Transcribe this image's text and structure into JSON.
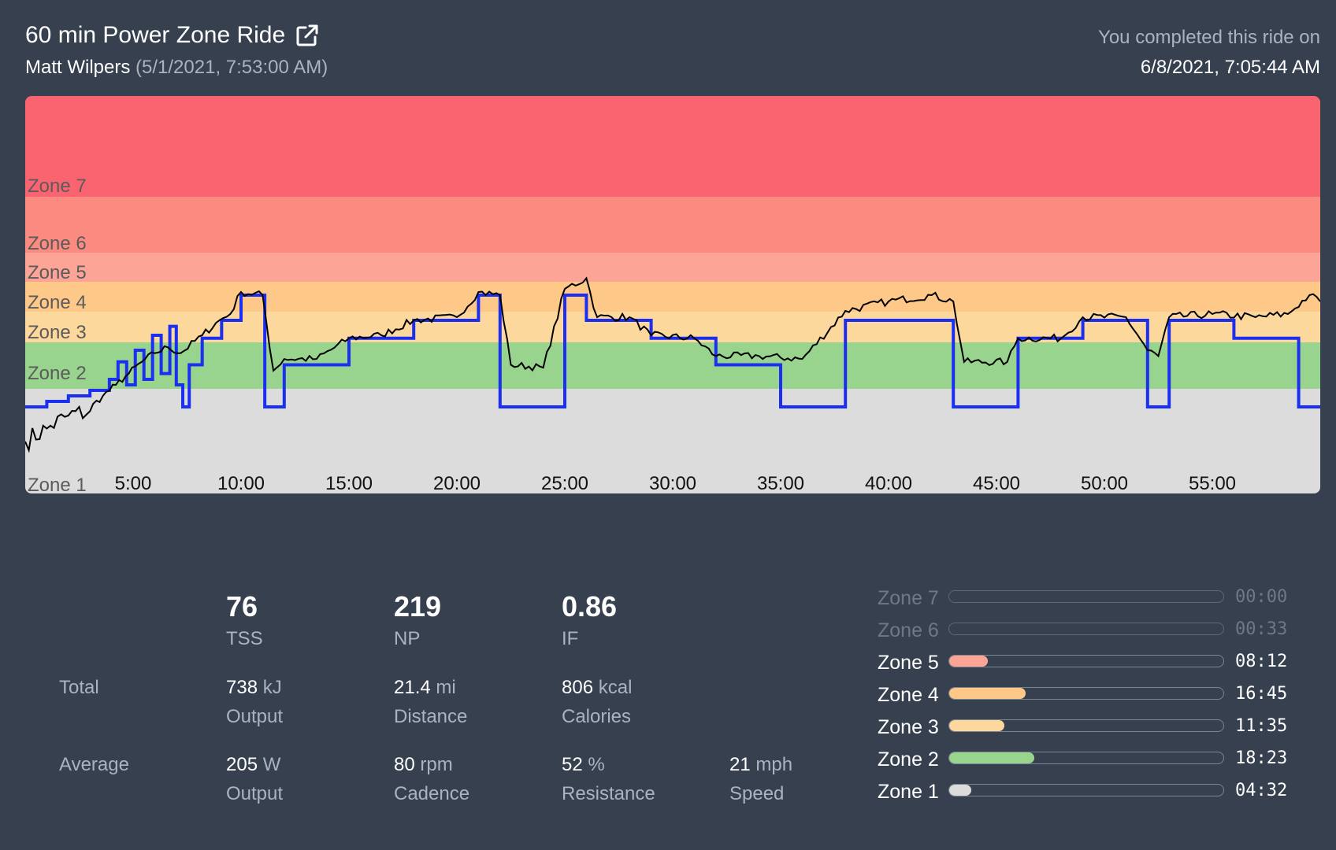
{
  "header": {
    "title": "60 min Power Zone Ride",
    "instructor": "Matt Wilpers",
    "aired": "(5/1/2021, 7:53:00 AM)",
    "completed_label": "You completed this ride on",
    "completed_date": "6/8/2021, 7:05:44 AM"
  },
  "chart_data": {
    "type": "line",
    "duration_min": 60,
    "x_ticks": [
      "5:00",
      "10:00",
      "15:00",
      "20:00",
      "25:00",
      "30:00",
      "35:00",
      "40:00",
      "45:00",
      "50:00",
      "55:00"
    ],
    "zone_labels": [
      "Zone 1",
      "Zone 2",
      "Zone 3",
      "Zone 4",
      "Zone 5",
      "Zone 6",
      "Zone 7"
    ],
    "zone_colors": [
      "#dcdcdc",
      "#98d48e",
      "#fdd89c",
      "#fdc888",
      "#fca496",
      "#fb8b80",
      "#fa6470"
    ],
    "y_range": [
      0,
      8
    ],
    "series": [
      {
        "color": "#1a2ff2",
        "target_steps": [
          [
            0,
            1.0
          ],
          [
            1,
            1.2
          ],
          [
            2,
            1.4
          ],
          [
            3,
            1.6
          ],
          [
            3.9,
            2.0
          ],
          [
            4.3,
            2.6
          ],
          [
            4.7,
            1.8
          ],
          [
            5.1,
            3.0
          ],
          [
            5.5,
            2.0
          ],
          [
            5.9,
            3.5
          ],
          [
            6.3,
            2.2
          ],
          [
            6.7,
            3.8
          ],
          [
            7.0,
            1.8
          ],
          [
            7.3,
            1.0
          ],
          [
            7.6,
            2.5
          ],
          [
            8.2,
            3.4
          ],
          [
            9.1,
            4.0
          ],
          [
            10.0,
            4.8
          ],
          [
            11.1,
            1.0
          ],
          [
            12.0,
            2.5
          ],
          [
            15.0,
            3.4
          ],
          [
            18.0,
            4.0
          ],
          [
            21.0,
            4.8
          ],
          [
            22.0,
            1.0
          ],
          [
            25.0,
            4.8
          ],
          [
            26.0,
            4.0
          ],
          [
            29.0,
            3.4
          ],
          [
            32.0,
            2.5
          ],
          [
            35.0,
            1.0
          ],
          [
            38.0,
            4.0
          ],
          [
            43.0,
            1.0
          ],
          [
            46.0,
            3.4
          ],
          [
            49.0,
            4.0
          ],
          [
            52.0,
            1.0
          ],
          [
            53.0,
            4.0
          ],
          [
            56.0,
            3.4
          ],
          [
            59.0,
            1.0
          ],
          [
            60,
            1.0
          ]
        ]
      },
      {
        "color": "#000000",
        "actual_points": [
          [
            0,
            0.6
          ],
          [
            1,
            0.75
          ],
          [
            2,
            0.9
          ],
          [
            3,
            0.95
          ],
          [
            3.6,
            1.4
          ],
          [
            4.2,
            1.8
          ],
          [
            4.8,
            2.2
          ],
          [
            5.4,
            2.6
          ],
          [
            6.0,
            2.9
          ],
          [
            6.6,
            3.1
          ],
          [
            7.2,
            2.9
          ],
          [
            8.2,
            3.5
          ],
          [
            9.0,
            4.0
          ],
          [
            9.5,
            4.2
          ],
          [
            10.0,
            4.9
          ],
          [
            11.0,
            4.8
          ],
          [
            11.5,
            2.3
          ],
          [
            12.0,
            2.7
          ],
          [
            13.5,
            2.7
          ],
          [
            15.0,
            3.4
          ],
          [
            16.5,
            3.5
          ],
          [
            18.0,
            4.0
          ],
          [
            20.0,
            4.1
          ],
          [
            21.0,
            4.9
          ],
          [
            22.0,
            4.8
          ],
          [
            22.5,
            2.5
          ],
          [
            24.0,
            2.4
          ],
          [
            25.0,
            5.0
          ],
          [
            26.0,
            5.3
          ],
          [
            26.5,
            4.1
          ],
          [
            28.0,
            4.1
          ],
          [
            29.0,
            3.5
          ],
          [
            31.0,
            3.4
          ],
          [
            32.0,
            2.8
          ],
          [
            34.0,
            2.8
          ],
          [
            36.0,
            2.7
          ],
          [
            38.0,
            4.3
          ],
          [
            40.0,
            4.6
          ],
          [
            42.0,
            4.8
          ],
          [
            43.0,
            4.6
          ],
          [
            43.5,
            2.6
          ],
          [
            45.5,
            2.6
          ],
          [
            46.0,
            3.4
          ],
          [
            48.0,
            3.4
          ],
          [
            49.0,
            4.1
          ],
          [
            51.0,
            4.1
          ],
          [
            52.0,
            3.0
          ],
          [
            52.5,
            2.8
          ],
          [
            53.0,
            4.1
          ],
          [
            55.0,
            4.2
          ],
          [
            57.0,
            4.1
          ],
          [
            58.5,
            4.2
          ],
          [
            59.5,
            4.8
          ],
          [
            60,
            4.6
          ]
        ]
      }
    ]
  },
  "stats": {
    "tss": "76",
    "tss_label": "TSS",
    "np": "219",
    "np_label": "NP",
    "if": "0.86",
    "if_label": "IF",
    "total_label": "Total",
    "output_total": "738",
    "output_total_unit": "kJ",
    "output_total_cap": "Output",
    "distance": "21.4",
    "distance_unit": "mi",
    "distance_cap": "Distance",
    "calories": "806",
    "calories_unit": "kcal",
    "calories_cap": "Calories",
    "average_label": "Average",
    "output_avg": "205",
    "output_avg_unit": "W",
    "output_avg_cap": "Output",
    "cadence": "80",
    "cadence_unit": "rpm",
    "cadence_cap": "Cadence",
    "resistance": "52",
    "resistance_unit": "%",
    "resistance_cap": "Resistance",
    "speed": "21",
    "speed_unit": "mph",
    "speed_cap": "Speed"
  },
  "zones": [
    {
      "name": "Zone 7",
      "time": "00:00",
      "fraction": 0.0,
      "color": "#fa6470",
      "dim": true
    },
    {
      "name": "Zone 6",
      "time": "00:33",
      "fraction": 0.0,
      "color": "#fb8b80",
      "dim": true
    },
    {
      "name": "Zone 5",
      "time": "08:12",
      "fraction": 0.14,
      "color": "#fca496",
      "dim": false
    },
    {
      "name": "Zone 4",
      "time": "16:45",
      "fraction": 0.28,
      "color": "#fdc888",
      "dim": false
    },
    {
      "name": "Zone 3",
      "time": "11:35",
      "fraction": 0.2,
      "color": "#fdd89c",
      "dim": false
    },
    {
      "name": "Zone 2",
      "time": "18:23",
      "fraction": 0.31,
      "color": "#98d48e",
      "dim": false
    },
    {
      "name": "Zone 1",
      "time": "04:32",
      "fraction": 0.08,
      "color": "#dcdcdc",
      "dim": false
    }
  ]
}
